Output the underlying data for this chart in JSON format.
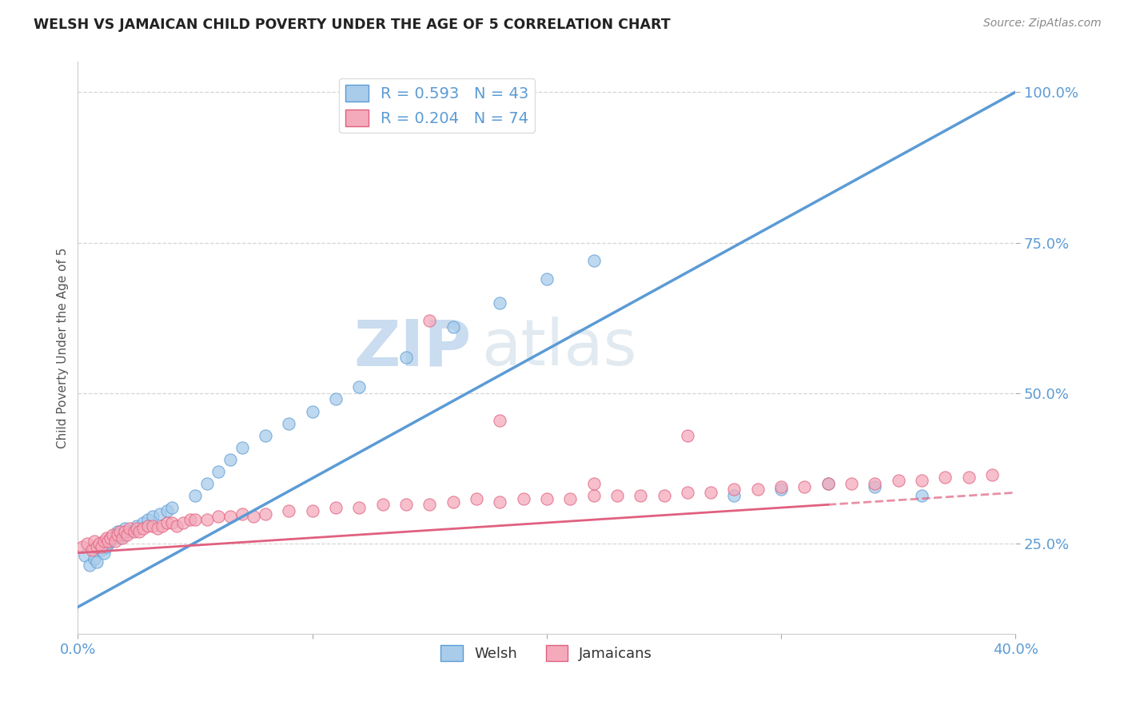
{
  "title": "WELSH VS JAMAICAN CHILD POVERTY UNDER THE AGE OF 5 CORRELATION CHART",
  "source_text": "Source: ZipAtlas.com",
  "ylabel": "Child Poverty Under the Age of 5",
  "watermark_zip": "ZIP",
  "watermark_atlas": "atlas",
  "xlim": [
    0.0,
    0.4
  ],
  "ylim": [
    0.1,
    1.05
  ],
  "x_ticks": [
    0.0,
    0.1,
    0.2,
    0.3,
    0.4
  ],
  "x_tick_labels": [
    "0.0%",
    "",
    "",
    "",
    "40.0%"
  ],
  "y_ticks": [
    0.25,
    0.5,
    0.75,
    1.0
  ],
  "y_tick_labels": [
    "25.0%",
    "50.0%",
    "75.0%",
    "100.0%"
  ],
  "welsh_color": "#A8CCEA",
  "welsh_edge_color": "#5B9BD5",
  "jamaican_color": "#F4AABA",
  "jamaican_edge_color": "#E06080",
  "trend_welsh_color": "#5B9BD5",
  "trend_jamaican_color": "#E06080",
  "legend_welsh": "R = 0.593   N = 43",
  "legend_jamaican": "R = 0.204   N = 74",
  "grid_color": "#CCCCCC",
  "background_color": "#FFFFFF",
  "title_color": "#222222",
  "axis_label_color": "#555555",
  "tick_label_color": "#5B9BD5",
  "welsh_trend_x0": 0.0,
  "welsh_trend_y0": 0.145,
  "welsh_trend_x1": 0.4,
  "welsh_trend_y1": 1.0,
  "jamaican_trend_x0": 0.0,
  "jamaican_trend_y0": 0.235,
  "jamaican_trend_x1": 0.4,
  "jamaican_trend_y1": 0.335,
  "welsh_scatter_x": [
    0.003,
    0.005,
    0.007,
    0.008,
    0.01,
    0.011,
    0.012,
    0.013,
    0.014,
    0.015,
    0.016,
    0.017,
    0.018,
    0.019,
    0.02,
    0.022,
    0.025,
    0.028,
    0.03,
    0.032,
    0.035,
    0.038,
    0.04,
    0.05,
    0.055,
    0.06,
    0.065,
    0.07,
    0.08,
    0.09,
    0.1,
    0.11,
    0.12,
    0.14,
    0.16,
    0.18,
    0.2,
    0.22,
    0.28,
    0.3,
    0.32,
    0.34,
    0.36
  ],
  "welsh_scatter_y": [
    0.23,
    0.215,
    0.225,
    0.22,
    0.24,
    0.235,
    0.245,
    0.25,
    0.255,
    0.26,
    0.265,
    0.27,
    0.26,
    0.265,
    0.275,
    0.27,
    0.28,
    0.285,
    0.29,
    0.295,
    0.3,
    0.305,
    0.31,
    0.33,
    0.35,
    0.37,
    0.39,
    0.41,
    0.43,
    0.45,
    0.47,
    0.49,
    0.51,
    0.56,
    0.61,
    0.65,
    0.69,
    0.72,
    0.33,
    0.34,
    0.35,
    0.345,
    0.33
  ],
  "jamaican_scatter_x": [
    0.002,
    0.004,
    0.006,
    0.007,
    0.008,
    0.009,
    0.01,
    0.011,
    0.012,
    0.013,
    0.014,
    0.015,
    0.016,
    0.017,
    0.018,
    0.019,
    0.02,
    0.021,
    0.022,
    0.024,
    0.025,
    0.026,
    0.028,
    0.03,
    0.032,
    0.034,
    0.036,
    0.038,
    0.04,
    0.042,
    0.045,
    0.048,
    0.05,
    0.055,
    0.06,
    0.065,
    0.07,
    0.075,
    0.08,
    0.09,
    0.1,
    0.11,
    0.12,
    0.13,
    0.14,
    0.15,
    0.16,
    0.17,
    0.18,
    0.19,
    0.2,
    0.21,
    0.22,
    0.23,
    0.24,
    0.25,
    0.26,
    0.27,
    0.28,
    0.29,
    0.3,
    0.31,
    0.32,
    0.33,
    0.34,
    0.35,
    0.36,
    0.37,
    0.38,
    0.39,
    0.15,
    0.18,
    0.22,
    0.26
  ],
  "jamaican_scatter_y": [
    0.245,
    0.25,
    0.24,
    0.255,
    0.245,
    0.25,
    0.245,
    0.255,
    0.26,
    0.255,
    0.26,
    0.265,
    0.255,
    0.265,
    0.27,
    0.26,
    0.27,
    0.265,
    0.275,
    0.27,
    0.275,
    0.27,
    0.275,
    0.28,
    0.28,
    0.275,
    0.28,
    0.285,
    0.285,
    0.28,
    0.285,
    0.29,
    0.29,
    0.29,
    0.295,
    0.295,
    0.3,
    0.295,
    0.3,
    0.305,
    0.305,
    0.31,
    0.31,
    0.315,
    0.315,
    0.315,
    0.32,
    0.325,
    0.32,
    0.325,
    0.325,
    0.325,
    0.33,
    0.33,
    0.33,
    0.33,
    0.335,
    0.335,
    0.34,
    0.34,
    0.345,
    0.345,
    0.35,
    0.35,
    0.35,
    0.355,
    0.355,
    0.36,
    0.36,
    0.365,
    0.62,
    0.455,
    0.35,
    0.43
  ]
}
